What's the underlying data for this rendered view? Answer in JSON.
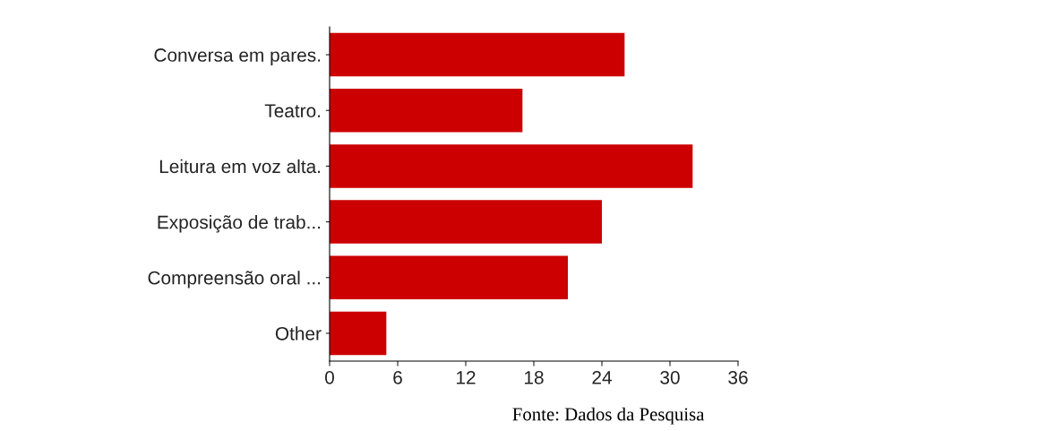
{
  "chart_data": {
    "type": "bar",
    "orientation": "horizontal",
    "categories": [
      "Conversa em pares.",
      "Teatro.",
      "Leitura em voz alta.",
      "Exposição de trab...",
      "Compreensão oral ...",
      "Other"
    ],
    "values": [
      26,
      17,
      32,
      24,
      21,
      5
    ],
    "color": "#cc0000",
    "xlim": [
      0,
      36
    ],
    "xticks": [
      0,
      6,
      12,
      18,
      24,
      30,
      36
    ],
    "grid": false,
    "legend": false,
    "annotations": [
      "Fonte: Dados da Pesquisa"
    ]
  }
}
